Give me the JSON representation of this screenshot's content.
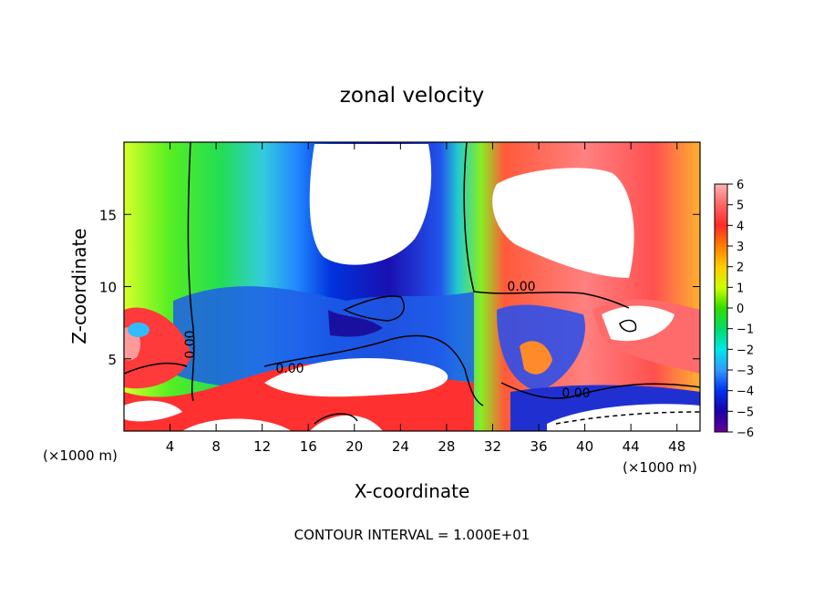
{
  "chart_data": {
    "type": "heatmap",
    "title": "zonal velocity",
    "xlabel": "X-coordinate",
    "ylabel": "Z-coordinate",
    "x_unit": "(×1000 m)",
    "y_unit": "(×1000 m)",
    "xlim": [
      0,
      50
    ],
    "ylim": [
      0,
      20
    ],
    "x_ticks": [
      "4",
      "8",
      "12",
      "16",
      "20",
      "24",
      "28",
      "32",
      "36",
      "40",
      "44",
      "48"
    ],
    "y_ticks": [
      "5",
      "10",
      "15"
    ],
    "colorbar": {
      "ticks": [
        "6",
        "5",
        "4",
        "3",
        "2",
        "1",
        "0",
        "−1",
        "−2",
        "−3",
        "−4",
        "−5",
        "−6"
      ],
      "range": [
        -6,
        6
      ],
      "colors": [
        "#ffb3b3",
        "#ff6666",
        "#ff2a2a",
        "#ff7f00",
        "#ffcc00",
        "#ccff00",
        "#33dd00",
        "#00dd66",
        "#00e8e8",
        "#3399ff",
        "#0033ee",
        "#1a00aa",
        "#660099"
      ]
    },
    "contour_labels": [
      "0.00",
      "0.00",
      "0.00",
      "0.00"
    ],
    "footer": "CONTOUR INTERVAL = 1.000E+01"
  }
}
